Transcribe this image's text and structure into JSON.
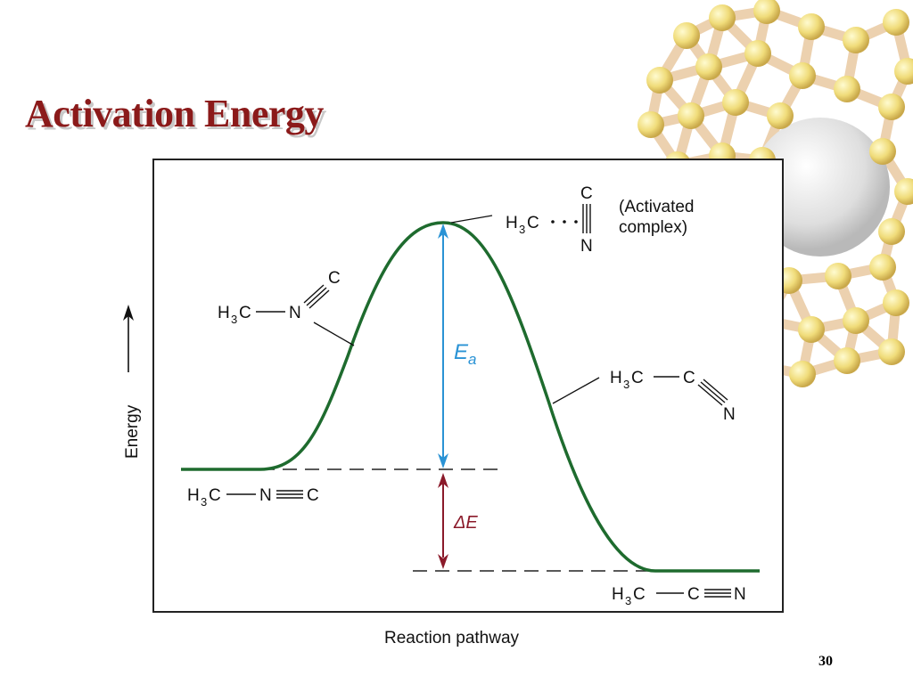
{
  "slide": {
    "title": "Activation Energy",
    "page_number": "30"
  },
  "diagram": {
    "y_axis_label": "Energy",
    "x_axis_label": "Reaction pathway",
    "energy_levels": {
      "reactant": 0,
      "activated_complex": 1.0,
      "product": -0.41
    },
    "activated_complex_label": [
      "(Activated",
      "complex)"
    ],
    "ea_label": {
      "symbol": "E",
      "subscript": "a"
    },
    "delta_e_label": "ΔE",
    "molecules": {
      "reactant_h": "H",
      "reactant_sub": "3",
      "reactant_c": "C",
      "reactant_n": "N",
      "reactant_c2": "C",
      "activated_c": "C",
      "activated_n": "N",
      "product_c": "C",
      "product_n": "N"
    },
    "colors": {
      "curve": "#1e6b2e",
      "ea_arrow": "#2a93d5",
      "delta_e_arrow": "#8b1a2a"
    }
  }
}
